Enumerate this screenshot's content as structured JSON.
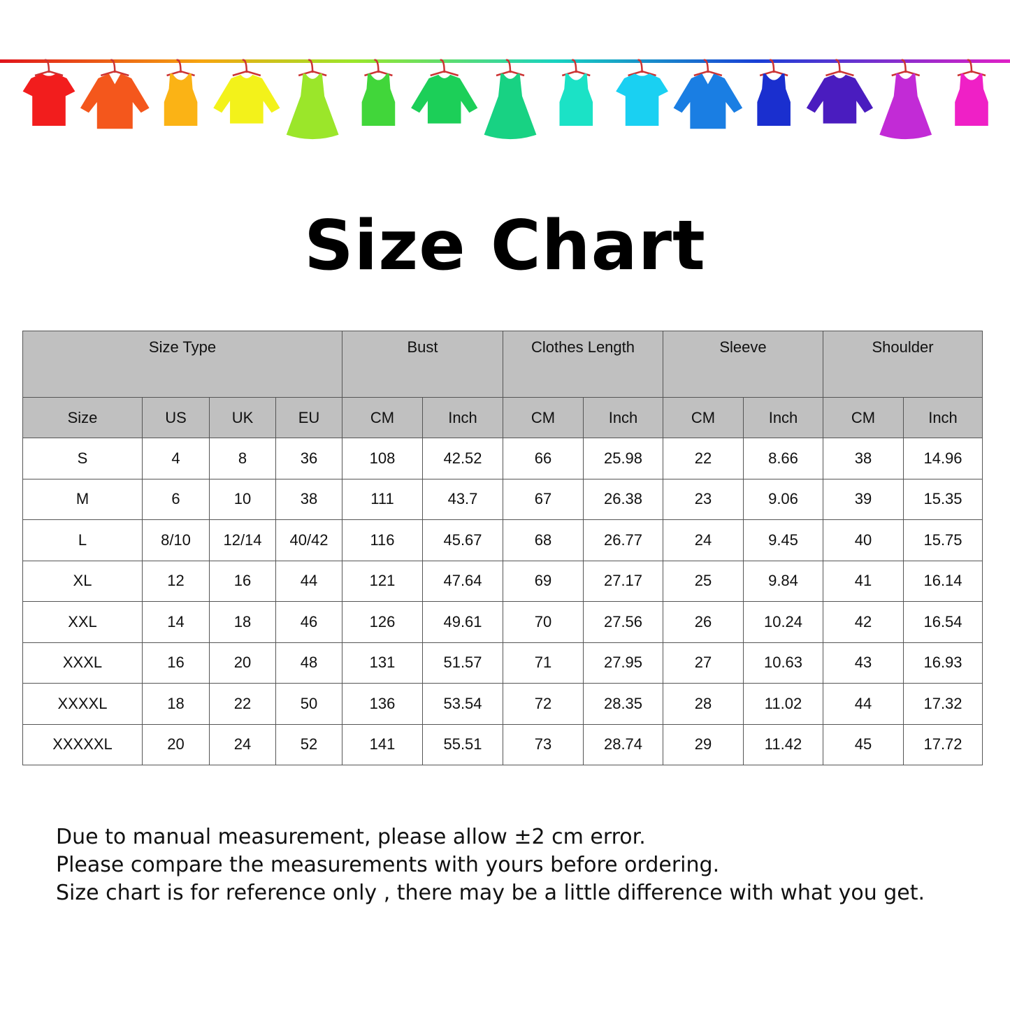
{
  "banner": {
    "clothes": [
      {
        "type": "tshirt",
        "color": "#f21d1d"
      },
      {
        "type": "shirt",
        "color": "#f4571c"
      },
      {
        "type": "tank",
        "color": "#fbb315"
      },
      {
        "type": "sweater",
        "color": "#f3f21a"
      },
      {
        "type": "dress",
        "color": "#9be62a"
      },
      {
        "type": "tank",
        "color": "#41d63a"
      },
      {
        "type": "sweater",
        "color": "#1ccf58"
      },
      {
        "type": "dress",
        "color": "#18d283"
      },
      {
        "type": "tank",
        "color": "#1be2c6"
      },
      {
        "type": "tshirt",
        "color": "#1ad0f2"
      },
      {
        "type": "shirt",
        "color": "#1a7ee3"
      },
      {
        "type": "tank",
        "color": "#1a2fcf"
      },
      {
        "type": "sweater",
        "color": "#4a1cbf"
      },
      {
        "type": "dress",
        "color": "#c22bd6"
      },
      {
        "type": "tank",
        "color": "#ef20c6"
      }
    ]
  },
  "title": "Size Chart",
  "table": {
    "groups": [
      "Size Type",
      "Bust",
      "Clothes Length",
      "Sleeve",
      "Shoulder"
    ],
    "columns": [
      "Size",
      "US",
      "UK",
      "EU",
      "CM",
      "Inch",
      "CM",
      "Inch",
      "CM",
      "Inch",
      "CM",
      "Inch"
    ],
    "rows": [
      [
        "S",
        "4",
        "8",
        "36",
        "108",
        "42.52",
        "66",
        "25.98",
        "22",
        "8.66",
        "38",
        "14.96"
      ],
      [
        "M",
        "6",
        "10",
        "38",
        "111",
        "43.7",
        "67",
        "26.38",
        "23",
        "9.06",
        "39",
        "15.35"
      ],
      [
        "L",
        "8/10",
        "12/14",
        "40/42",
        "116",
        "45.67",
        "68",
        "26.77",
        "24",
        "9.45",
        "40",
        "15.75"
      ],
      [
        "XL",
        "12",
        "16",
        "44",
        "121",
        "47.64",
        "69",
        "27.17",
        "25",
        "9.84",
        "41",
        "16.14"
      ],
      [
        "XXL",
        "14",
        "18",
        "46",
        "126",
        "49.61",
        "70",
        "27.56",
        "26",
        "10.24",
        "42",
        "16.54"
      ],
      [
        "XXXL",
        "16",
        "20",
        "48",
        "131",
        "51.57",
        "71",
        "27.95",
        "27",
        "10.63",
        "43",
        "16.93"
      ],
      [
        "XXXXL",
        "18",
        "22",
        "50",
        "136",
        "53.54",
        "72",
        "28.35",
        "28",
        "11.02",
        "44",
        "17.32"
      ],
      [
        "XXXXXL",
        "20",
        "24",
        "52",
        "141",
        "55.51",
        "73",
        "28.74",
        "29",
        "11.42",
        "45",
        "17.72"
      ]
    ]
  },
  "notes": [
    "Due to manual measurement, please allow ±2 cm error.",
    "Please compare the measurements with yours before ordering.",
    "Size chart is for reference only , there may be a little difference with what you get."
  ]
}
